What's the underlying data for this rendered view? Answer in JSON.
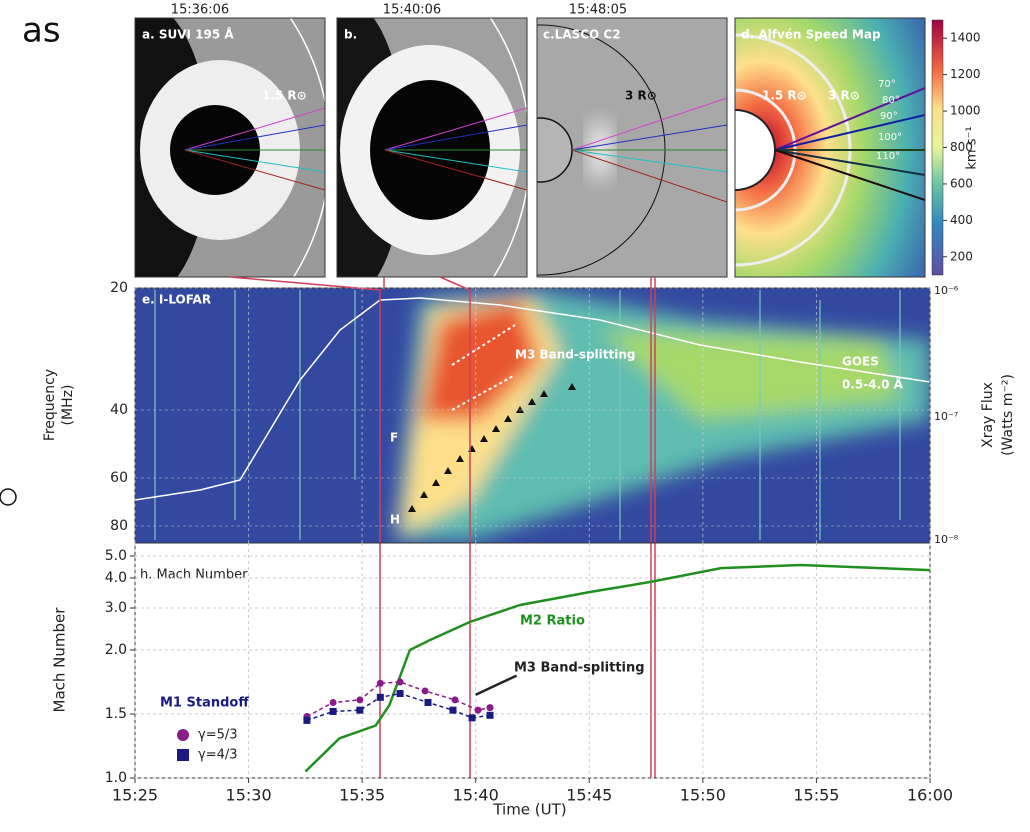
{
  "side_text": "as",
  "panels": [
    {
      "time": "15:36:06",
      "label": "a. SUVI 195 Å",
      "annotation": "1.5 R⊙"
    },
    {
      "time": "15:40:06",
      "label": "b."
    },
    {
      "time": "15:48:05",
      "label": "c.LASCO C2",
      "annotation": "3 R⊙"
    },
    {
      "label": "d. Alfvén Speed Map",
      "annotations": [
        "1.5 R⊙",
        "3 R⊙"
      ],
      "angles": [
        "70°",
        "80°",
        "90°",
        "100°",
        "110°"
      ]
    }
  ],
  "colorbar": {
    "label": "km s⁻¹",
    "lim": [
      100,
      1500
    ],
    "ticks": [
      200,
      400,
      600,
      800,
      1000,
      1200,
      1400
    ]
  },
  "spectrogram": {
    "label": "e. I-LOFAR",
    "ylabel": [
      "Frequency",
      "(MHz)"
    ],
    "yticks": [
      20,
      40,
      60,
      80
    ],
    "y2label": [
      "Xray Flux",
      "(Watts m⁻²)"
    ],
    "y2ticks": [
      "10⁻⁶",
      "10⁻⁷",
      "10⁻⁸"
    ],
    "band": "M3 Band-splitting",
    "goes": "GOES",
    "goes_band": "0.5-4.0 Å",
    "lane_f": "F",
    "lane_h": "H"
  },
  "chart_data": {
    "type": "line",
    "annotation": "h. Mach Number",
    "xlabel": "Time (UT)",
    "ylabel": "Mach Number",
    "xlim": [
      0,
      35
    ],
    "xticks": [
      {
        "value": 0,
        "label": "15:25"
      },
      {
        "value": 5,
        "label": "15:30"
      },
      {
        "value": 10,
        "label": "15:35"
      },
      {
        "value": 15,
        "label": "15:40"
      },
      {
        "value": 20,
        "label": "15:45"
      },
      {
        "value": 25,
        "label": "15:50"
      },
      {
        "value": 30,
        "label": "15:55"
      },
      {
        "value": 35,
        "label": "16:00"
      }
    ],
    "ylim": [
      1.0,
      5.6
    ],
    "yticks": [
      {
        "value": 1.0,
        "label": "1.0"
      },
      {
        "value": 1.5,
        "label": "1.5"
      },
      {
        "value": 2.0,
        "label": "2.0"
      },
      {
        "value": 3.0,
        "label": "3.0"
      },
      {
        "value": 4.0,
        "label": "4.0"
      },
      {
        "value": 5.0,
        "label": "5.0"
      }
    ],
    "grid": true,
    "legend_title": "M1 Standoff",
    "series": [
      {
        "name": "M2 Ratio",
        "color": "#1f8f1f",
        "marker": "none",
        "dashed": false,
        "x": [
          7.5,
          9.0,
          10.6,
          11.2,
          12.1,
          13.0,
          14.75,
          16.95,
          20.0,
          22.7,
          25.8,
          29.3,
          35.0
        ],
        "values": [
          1.05,
          1.31,
          1.41,
          1.57,
          2.0,
          2.24,
          2.67,
          3.1,
          3.53,
          3.87,
          4.45,
          4.59,
          4.36
        ]
      },
      {
        "name": "M3 Band-splitting",
        "color": "#222222",
        "marker": "none",
        "dashed": false,
        "x": [
          15.0,
          16.8
        ],
        "values": [
          1.65,
          1.8
        ]
      },
      {
        "name": "γ=5/3",
        "color": "#8b1a8b",
        "marker": "circle",
        "dashed": true,
        "x": [
          7.57,
          8.72,
          9.9,
          10.8,
          11.67,
          12.77,
          14.09,
          15.1,
          15.63
        ],
        "values": [
          1.48,
          1.59,
          1.61,
          1.74,
          1.75,
          1.68,
          1.61,
          1.53,
          1.55
        ]
      },
      {
        "name": "γ=4/3",
        "color": "#1a1a80",
        "marker": "square",
        "dashed": true,
        "x": [
          7.57,
          8.72,
          9.9,
          10.8,
          11.67,
          12.9,
          14.0,
          14.84,
          15.63
        ],
        "values": [
          1.45,
          1.52,
          1.53,
          1.63,
          1.66,
          1.59,
          1.53,
          1.47,
          1.49
        ]
      }
    ]
  }
}
